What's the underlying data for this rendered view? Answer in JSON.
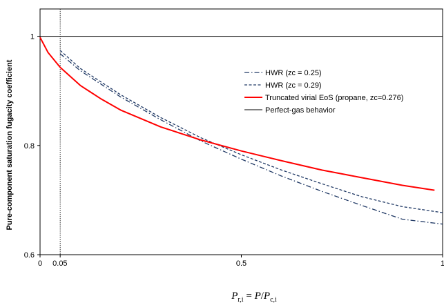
{
  "chart_data": {
    "type": "line",
    "title": "",
    "ylabel": "Pure-component saturation fugacity coefficient",
    "xlabel_parts": {
      "p1": "P",
      "s1": "r,i",
      "eq": " = ",
      "p2": "P",
      "slash": "/",
      "p3": "P",
      "s3": "c,i"
    },
    "xlim": [
      0,
      1
    ],
    "ylim": [
      0.6,
      1.05
    ],
    "x_ticks": [
      {
        "value": 0,
        "label": "0"
      },
      {
        "value": 0.05,
        "label": "0.05"
      },
      {
        "value": 0.5,
        "label": "0.5"
      },
      {
        "value": 1,
        "label": "1"
      }
    ],
    "y_ticks": [
      {
        "value": 0.6,
        "label": "0.6"
      },
      {
        "value": 0.8,
        "label": "0.8"
      },
      {
        "value": 1,
        "label": "1"
      }
    ],
    "vline_x": 0.05,
    "legend_position": "upper-right",
    "series": [
      {
        "name": "HWR (zc = 0.25)",
        "color": "#1f3864",
        "style": "dashdot",
        "x": [
          0.05,
          0.1,
          0.2,
          0.3,
          0.4,
          0.5,
          0.6,
          0.7,
          0.8,
          0.9,
          1.0
        ],
        "y": [
          0.968,
          0.937,
          0.889,
          0.847,
          0.808,
          0.775,
          0.744,
          0.716,
          0.69,
          0.665,
          0.656
        ]
      },
      {
        "name": "HWR (zc = 0.29)",
        "color": "#1f3864",
        "style": "dashed",
        "x": [
          0.05,
          0.1,
          0.2,
          0.3,
          0.4,
          0.5,
          0.6,
          0.7,
          0.8,
          0.9,
          1.0
        ],
        "y": [
          0.974,
          0.941,
          0.893,
          0.851,
          0.814,
          0.783,
          0.755,
          0.73,
          0.706,
          0.688,
          0.677
        ]
      },
      {
        "name": "Truncated virial EoS (propane, zc=0.276)",
        "color": "#ff0000",
        "style": "solid",
        "x": [
          0,
          0.02,
          0.05,
          0.1,
          0.15,
          0.2,
          0.3,
          0.4,
          0.5,
          0.6,
          0.7,
          0.8,
          0.9,
          0.98
        ],
        "y": [
          0.998,
          0.97,
          0.943,
          0.91,
          0.886,
          0.865,
          0.834,
          0.81,
          0.79,
          0.772,
          0.755,
          0.741,
          0.727,
          0.718
        ]
      },
      {
        "name": "Perfect-gas behavior",
        "color": "#000000",
        "style": "solid-thin",
        "x": [
          0,
          1
        ],
        "y": [
          1,
          1
        ]
      }
    ]
  }
}
